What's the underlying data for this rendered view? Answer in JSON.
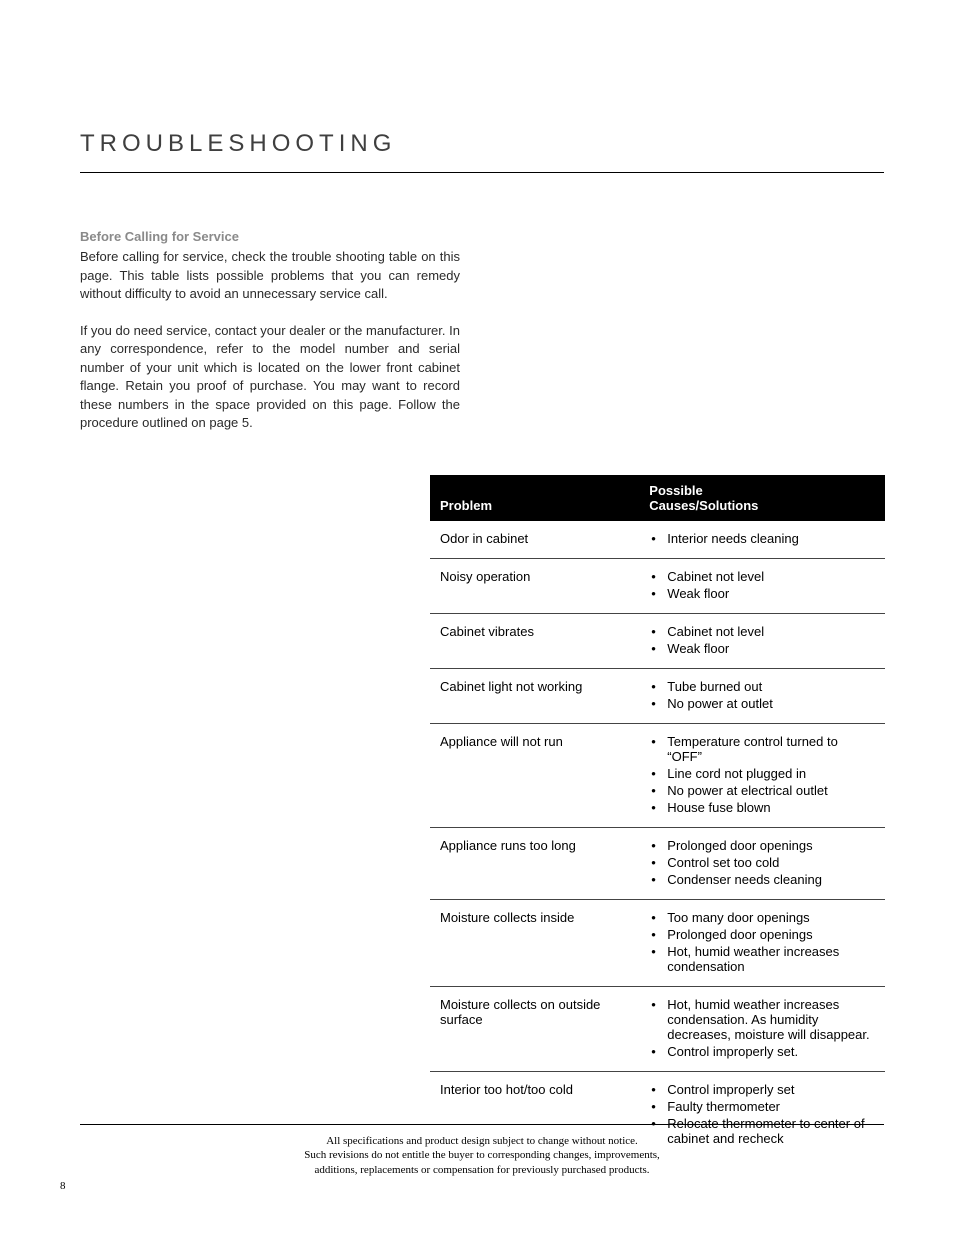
{
  "title": "TROUBLESHOOTING",
  "intro": {
    "subhead": "Before Calling for Service",
    "para1": "Before calling for service, check the trouble shooting table on this page. This table lists possible problems that you can remedy without difficulty to avoid an unnecessary service call.",
    "para2": "If you do need service, contact your dealer or the manufacturer. In any correspondence, refer to the model number and serial number of your unit which is located on the lower front cabinet flange. Retain you proof of purchase. You may want to record these numbers in the space provided on this page. Follow the procedure outlined on page 5."
  },
  "table": {
    "header_problem": "Problem",
    "header_causes_line1": "Possible",
    "header_causes_line2": "Causes/Solutions",
    "header_bg": "#000000",
    "header_color": "#ffffff",
    "border_color": "#444444",
    "fontsize": 13,
    "rows": [
      {
        "problem": "Odor in cabinet",
        "causes": [
          "Interior needs cleaning"
        ]
      },
      {
        "problem": "Noisy operation",
        "causes": [
          "Cabinet not level",
          "Weak floor"
        ]
      },
      {
        "problem": "Cabinet vibrates",
        "causes": [
          "Cabinet not level",
          "Weak floor"
        ]
      },
      {
        "problem": "Cabinet light not working",
        "causes": [
          "Tube burned out",
          "No power at outlet"
        ]
      },
      {
        "problem": "Appliance will not run",
        "causes": [
          "Temperature control turned to “OFF”",
          "Line cord not plugged in",
          "No power at electrical outlet",
          "House fuse blown"
        ]
      },
      {
        "problem": "Appliance runs too long",
        "causes": [
          "Prolonged door openings",
          "Control set too cold",
          "Condenser needs cleaning"
        ]
      },
      {
        "problem": "Moisture collects inside",
        "causes": [
          "Too many door openings",
          "Prolonged door openings",
          "Hot, humid weather increases condensation"
        ]
      },
      {
        "problem": "Moisture collects on outside surface",
        "causes": [
          "Hot, humid weather increases condensation. As humidity decreases, moisture will disappear.",
          "Control improperly set."
        ]
      },
      {
        "problem": "Interior too hot/too cold",
        "causes": [
          "Control improperly set",
          "Faulty thermometer",
          "Relocate thermometer to center of cabinet and recheck"
        ]
      }
    ]
  },
  "footer": {
    "line1": "All specifications and product design subject to change without notice.",
    "line2": "Such revisions do not entitle the buyer to corresponding changes, improvements,",
    "line3": "additions, replacements or compensation for previously purchased products."
  },
  "pageNumber": "8",
  "colors": {
    "background": "#ffffff",
    "text": "#000000",
    "subhead": "#8a8a8a",
    "title": "#3f3f3f"
  }
}
